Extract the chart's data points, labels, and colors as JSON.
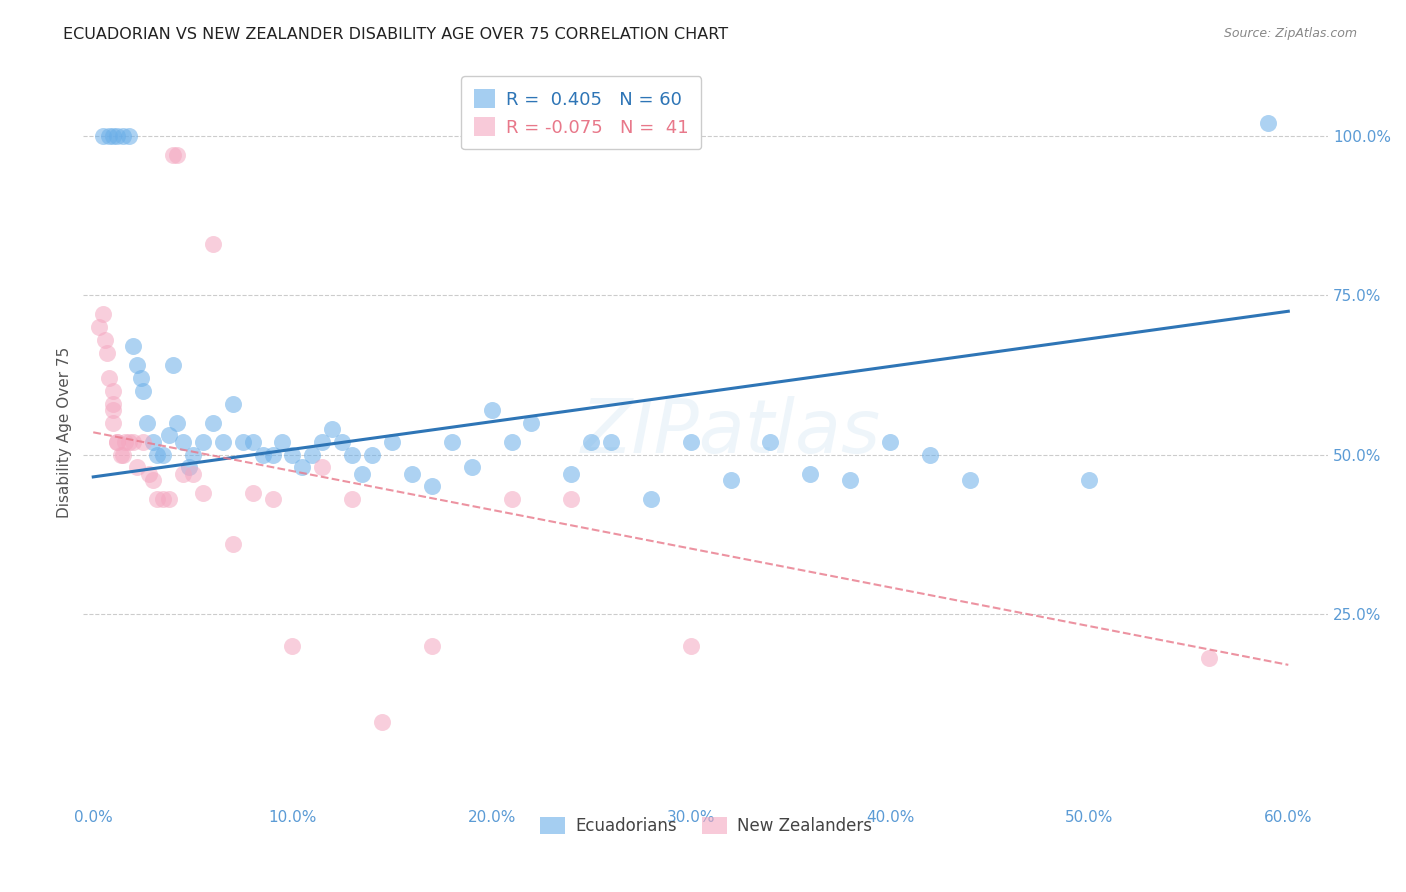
{
  "title": "ECUADORIAN VS NEW ZEALANDER DISABILITY AGE OVER 75 CORRELATION CHART",
  "source": "Source: ZipAtlas.com",
  "xlabel_ticks": [
    "0.0%",
    "10.0%",
    "20.0%",
    "30.0%",
    "40.0%",
    "50.0%",
    "60.0%"
  ],
  "xlabel_vals": [
    0.0,
    0.1,
    0.2,
    0.3,
    0.4,
    0.5,
    0.6
  ],
  "ylabel": "Disability Age Over 75",
  "ylabel_ticks": [
    "100.0%",
    "75.0%",
    "50.0%",
    "25.0%"
  ],
  "ylabel_vals": [
    1.0,
    0.75,
    0.5,
    0.25
  ],
  "xlim": [
    -0.005,
    0.62
  ],
  "ylim": [
    -0.05,
    1.12
  ],
  "legend_blue_R": "0.405",
  "legend_blue_N": "60",
  "legend_pink_R": "-0.075",
  "legend_pink_N": "41",
  "blue_color": "#6aaee8",
  "pink_color": "#f4a7c0",
  "blue_line_color": "#2E75B6",
  "pink_line_color": "#e8788a",
  "watermark": "ZIPatlas",
  "blue_scatter_x": [
    0.005,
    0.008,
    0.01,
    0.012,
    0.015,
    0.018,
    0.02,
    0.022,
    0.024,
    0.025,
    0.027,
    0.03,
    0.032,
    0.035,
    0.038,
    0.04,
    0.042,
    0.045,
    0.048,
    0.05,
    0.055,
    0.06,
    0.065,
    0.07,
    0.075,
    0.08,
    0.085,
    0.09,
    0.095,
    0.1,
    0.105,
    0.11,
    0.115,
    0.12,
    0.125,
    0.13,
    0.135,
    0.14,
    0.15,
    0.16,
    0.17,
    0.18,
    0.19,
    0.2,
    0.21,
    0.22,
    0.24,
    0.25,
    0.26,
    0.28,
    0.3,
    0.32,
    0.34,
    0.36,
    0.38,
    0.4,
    0.42,
    0.44,
    0.5,
    0.59
  ],
  "blue_scatter_y": [
    1.0,
    1.0,
    1.0,
    1.0,
    1.0,
    1.0,
    0.67,
    0.64,
    0.62,
    0.6,
    0.55,
    0.52,
    0.5,
    0.5,
    0.53,
    0.64,
    0.55,
    0.52,
    0.48,
    0.5,
    0.52,
    0.55,
    0.52,
    0.58,
    0.52,
    0.52,
    0.5,
    0.5,
    0.52,
    0.5,
    0.48,
    0.5,
    0.52,
    0.54,
    0.52,
    0.5,
    0.47,
    0.5,
    0.52,
    0.47,
    0.45,
    0.52,
    0.48,
    0.57,
    0.52,
    0.55,
    0.47,
    0.52,
    0.52,
    0.43,
    0.52,
    0.46,
    0.52,
    0.47,
    0.46,
    0.52,
    0.5,
    0.46,
    0.46,
    1.02
  ],
  "pink_scatter_x": [
    0.003,
    0.005,
    0.006,
    0.007,
    0.008,
    0.01,
    0.01,
    0.01,
    0.01,
    0.012,
    0.012,
    0.014,
    0.015,
    0.016,
    0.018,
    0.02,
    0.022,
    0.025,
    0.028,
    0.03,
    0.032,
    0.035,
    0.038,
    0.04,
    0.042,
    0.045,
    0.05,
    0.055,
    0.06,
    0.07,
    0.08,
    0.09,
    0.1,
    0.115,
    0.13,
    0.145,
    0.17,
    0.21,
    0.24,
    0.3,
    0.56
  ],
  "pink_scatter_y": [
    0.7,
    0.72,
    0.68,
    0.66,
    0.62,
    0.6,
    0.58,
    0.57,
    0.55,
    0.52,
    0.52,
    0.5,
    0.5,
    0.52,
    0.52,
    0.52,
    0.48,
    0.52,
    0.47,
    0.46,
    0.43,
    0.43,
    0.43,
    0.97,
    0.97,
    0.47,
    0.47,
    0.44,
    0.83,
    0.36,
    0.44,
    0.43,
    0.2,
    0.48,
    0.43,
    0.08,
    0.2,
    0.43,
    0.43,
    0.2,
    0.18
  ],
  "blue_line_x": [
    0.0,
    0.6
  ],
  "blue_line_y": [
    0.465,
    0.725
  ],
  "pink_line_x": [
    0.0,
    0.6
  ],
  "pink_line_y": [
    0.535,
    0.17
  ]
}
